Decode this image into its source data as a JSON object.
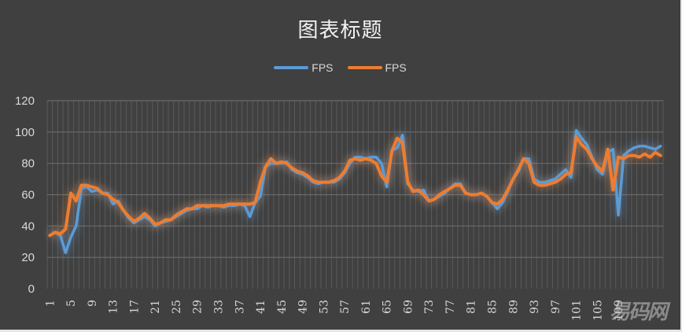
{
  "chart_data": {
    "type": "line",
    "title": "图表标题",
    "xlabel": "",
    "ylabel": "",
    "ylim": [
      0,
      120
    ],
    "yticks": [
      0,
      20,
      40,
      60,
      80,
      100,
      120
    ],
    "xtick_labels": [
      "1",
      "5",
      "9",
      "13",
      "17",
      "21",
      "25",
      "29",
      "33",
      "37",
      "41",
      "45",
      "49",
      "53",
      "57",
      "61",
      "65",
      "69",
      "73",
      "77",
      "81",
      "85",
      "89",
      "93",
      "97",
      "101",
      "105",
      "109"
    ],
    "grid": {
      "horizontal": true,
      "vertical": true
    },
    "legend_position": "top",
    "series": [
      {
        "name": "FPS",
        "color": "#5b9bd5",
        "values": [
          34,
          36,
          34,
          23,
          33,
          40,
          64,
          65,
          62,
          63,
          61,
          61,
          54,
          56,
          50,
          45,
          42,
          44,
          46,
          44,
          40,
          42,
          43,
          44,
          46,
          48,
          50,
          51,
          51,
          53,
          52,
          53,
          53,
          52,
          53,
          53,
          54,
          53,
          46,
          55,
          59,
          78,
          80,
          80,
          80,
          81,
          76,
          74,
          73,
          71,
          68,
          67,
          68,
          68,
          68,
          70,
          74,
          80,
          84,
          84,
          83,
          84,
          84,
          80,
          65,
          88,
          90,
          98,
          67,
          63,
          62,
          63,
          56,
          57,
          59,
          61,
          64,
          67,
          67,
          61,
          60,
          60,
          61,
          59,
          55,
          51,
          55,
          62,
          70,
          75,
          83,
          83,
          70,
          68,
          68,
          69,
          70,
          73,
          76,
          71,
          101,
          96,
          92,
          84,
          76,
          73,
          87,
          89,
          47,
          85,
          88,
          90,
          91,
          91,
          90,
          89,
          91
        ]
      },
      {
        "name": "FPS",
        "color": "#ed7d31",
        "values": [
          34,
          36,
          35,
          38,
          61,
          56,
          66,
          66,
          65,
          64,
          61,
          60,
          57,
          55,
          50,
          46,
          43,
          45,
          48,
          45,
          41,
          42,
          44,
          44,
          47,
          49,
          51,
          51,
          53,
          53,
          53,
          53,
          53,
          53,
          54,
          54,
          54,
          54,
          54,
          55,
          68,
          78,
          83,
          80,
          81,
          80,
          77,
          75,
          74,
          72,
          69,
          68,
          68,
          68,
          69,
          71,
          75,
          82,
          83,
          82,
          83,
          82,
          80,
          72,
          68,
          88,
          96,
          93,
          68,
          62,
          63,
          60,
          56,
          57,
          60,
          62,
          64,
          66,
          66,
          61,
          60,
          60,
          61,
          59,
          55,
          54,
          57,
          63,
          70,
          76,
          83,
          80,
          68,
          66,
          66,
          67,
          68,
          70,
          73,
          74,
          97,
          92,
          89,
          83,
          78,
          75,
          89,
          63,
          84,
          83,
          85,
          85,
          84,
          86,
          84,
          87,
          85
        ]
      }
    ]
  },
  "chart": {
    "title": "图表标题",
    "legend": [
      {
        "label": "FPS",
        "color": "#5b9bd5"
      },
      {
        "label": "FPS",
        "color": "#ed7d31"
      }
    ]
  },
  "watermark": "易码网"
}
